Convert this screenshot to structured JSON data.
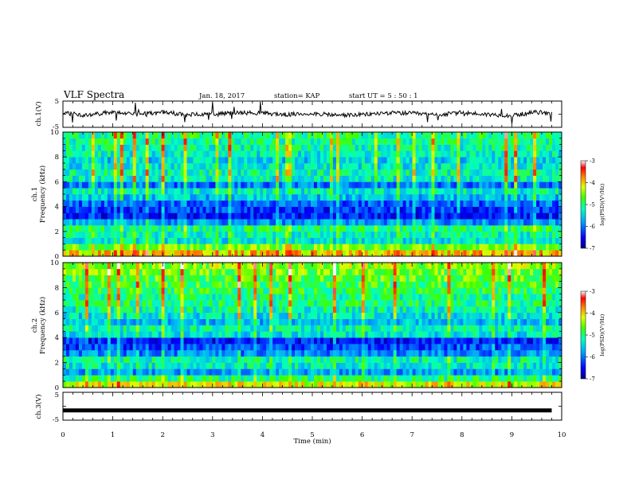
{
  "header": {
    "title": "VLF Spectra",
    "date": "Jan. 18, 2017",
    "station": "station= KAP",
    "start": "start  UT =  5 : 50 : 1"
  },
  "chart_data": [
    {
      "type": "line",
      "name": "ch1-waveform",
      "ylabel": "ch.1(V)",
      "ylim": [
        -5,
        5
      ],
      "yticks": [
        "5",
        "-5"
      ],
      "x": [
        0,
        0.5,
        1,
        1.5,
        2,
        2.5,
        3,
        3.5,
        4,
        4.5,
        5,
        5.5,
        6,
        6.5,
        7,
        7.5,
        8,
        8.5,
        9,
        9.5,
        9.8
      ],
      "y": [
        0.5,
        -0.5,
        1.0,
        0.0,
        0.8,
        -0.3,
        0.2,
        0.6,
        0.4,
        -0.2,
        0.3,
        -0.4,
        -0.2,
        0.5,
        0.3,
        -0.3,
        0.6,
        -0.1,
        -0.5,
        0.8,
        0.2
      ]
    },
    {
      "type": "heatmap",
      "name": "ch1-spectrogram",
      "ylabel": "ch.1\nFrequency (kHz)",
      "ylim": [
        0,
        10
      ],
      "yticks": [
        "0",
        "2",
        "4",
        "6",
        "8",
        "10"
      ],
      "colorbar_label": "log(PSD)(V²/Hz)",
      "colorbar_ticks": [
        "-3",
        "-4",
        "-5",
        "-6",
        "-7"
      ],
      "colorbar_range": [
        -7,
        -3
      ],
      "freq_kHz": [
        0.25,
        0.75,
        1.25,
        1.75,
        2.25,
        2.75,
        3.25,
        3.75,
        4.25,
        4.75,
        5.25,
        5.75,
        6.25,
        6.75,
        7.25,
        7.75,
        8.25,
        8.75,
        9.25,
        9.75
      ],
      "mean_log_psd": [
        -4.0,
        -4.6,
        -5.4,
        -5.2,
        -5.0,
        -5.8,
        -6.4,
        -6.3,
        -6.1,
        -5.6,
        -5.3,
        -6.0,
        -5.3,
        -5.2,
        -5.4,
        -5.5,
        -5.3,
        -5.2,
        -5.1,
        -5.0
      ]
    },
    {
      "type": "heatmap",
      "name": "ch2-spectrogram",
      "ylabel": "ch.2\nFrequency (kHz)",
      "ylim": [
        0,
        10
      ],
      "yticks": [
        "0",
        "2",
        "4",
        "6",
        "8",
        "10"
      ],
      "colorbar_label": "log(PSD)(V²/Hz)",
      "colorbar_ticks": [
        "-3",
        "-4",
        "-5",
        "-6",
        "-7"
      ],
      "colorbar_range": [
        -7,
        -3
      ],
      "freq_kHz": [
        0.25,
        0.75,
        1.25,
        1.75,
        2.25,
        2.75,
        3.25,
        3.75,
        4.25,
        4.75,
        5.25,
        5.75,
        6.25,
        6.75,
        7.25,
        7.75,
        8.25,
        8.75,
        9.25,
        9.75
      ],
      "mean_log_psd": [
        -4.2,
        -5.0,
        -5.8,
        -5.3,
        -5.2,
        -5.9,
        -6.2,
        -6.4,
        -5.4,
        -5.2,
        -5.6,
        -5.4,
        -5.2,
        -5.0,
        -5.1,
        -4.9,
        -4.8,
        -4.7,
        -4.6,
        -4.5
      ]
    },
    {
      "type": "line",
      "name": "ch3-waveform",
      "ylabel": "ch.3(V)",
      "ylim": [
        -5,
        5
      ],
      "yticks": [
        "5",
        "-5"
      ],
      "x": [
        0,
        9.8
      ],
      "y": [
        -1.5,
        -1.5
      ]
    }
  ],
  "time_axis": {
    "xlabel": "Time (min)",
    "xlim": [
      0,
      10
    ],
    "ticks": [
      "0",
      "1",
      "2",
      "3",
      "4",
      "5",
      "6",
      "7",
      "8",
      "9",
      "10"
    ]
  }
}
